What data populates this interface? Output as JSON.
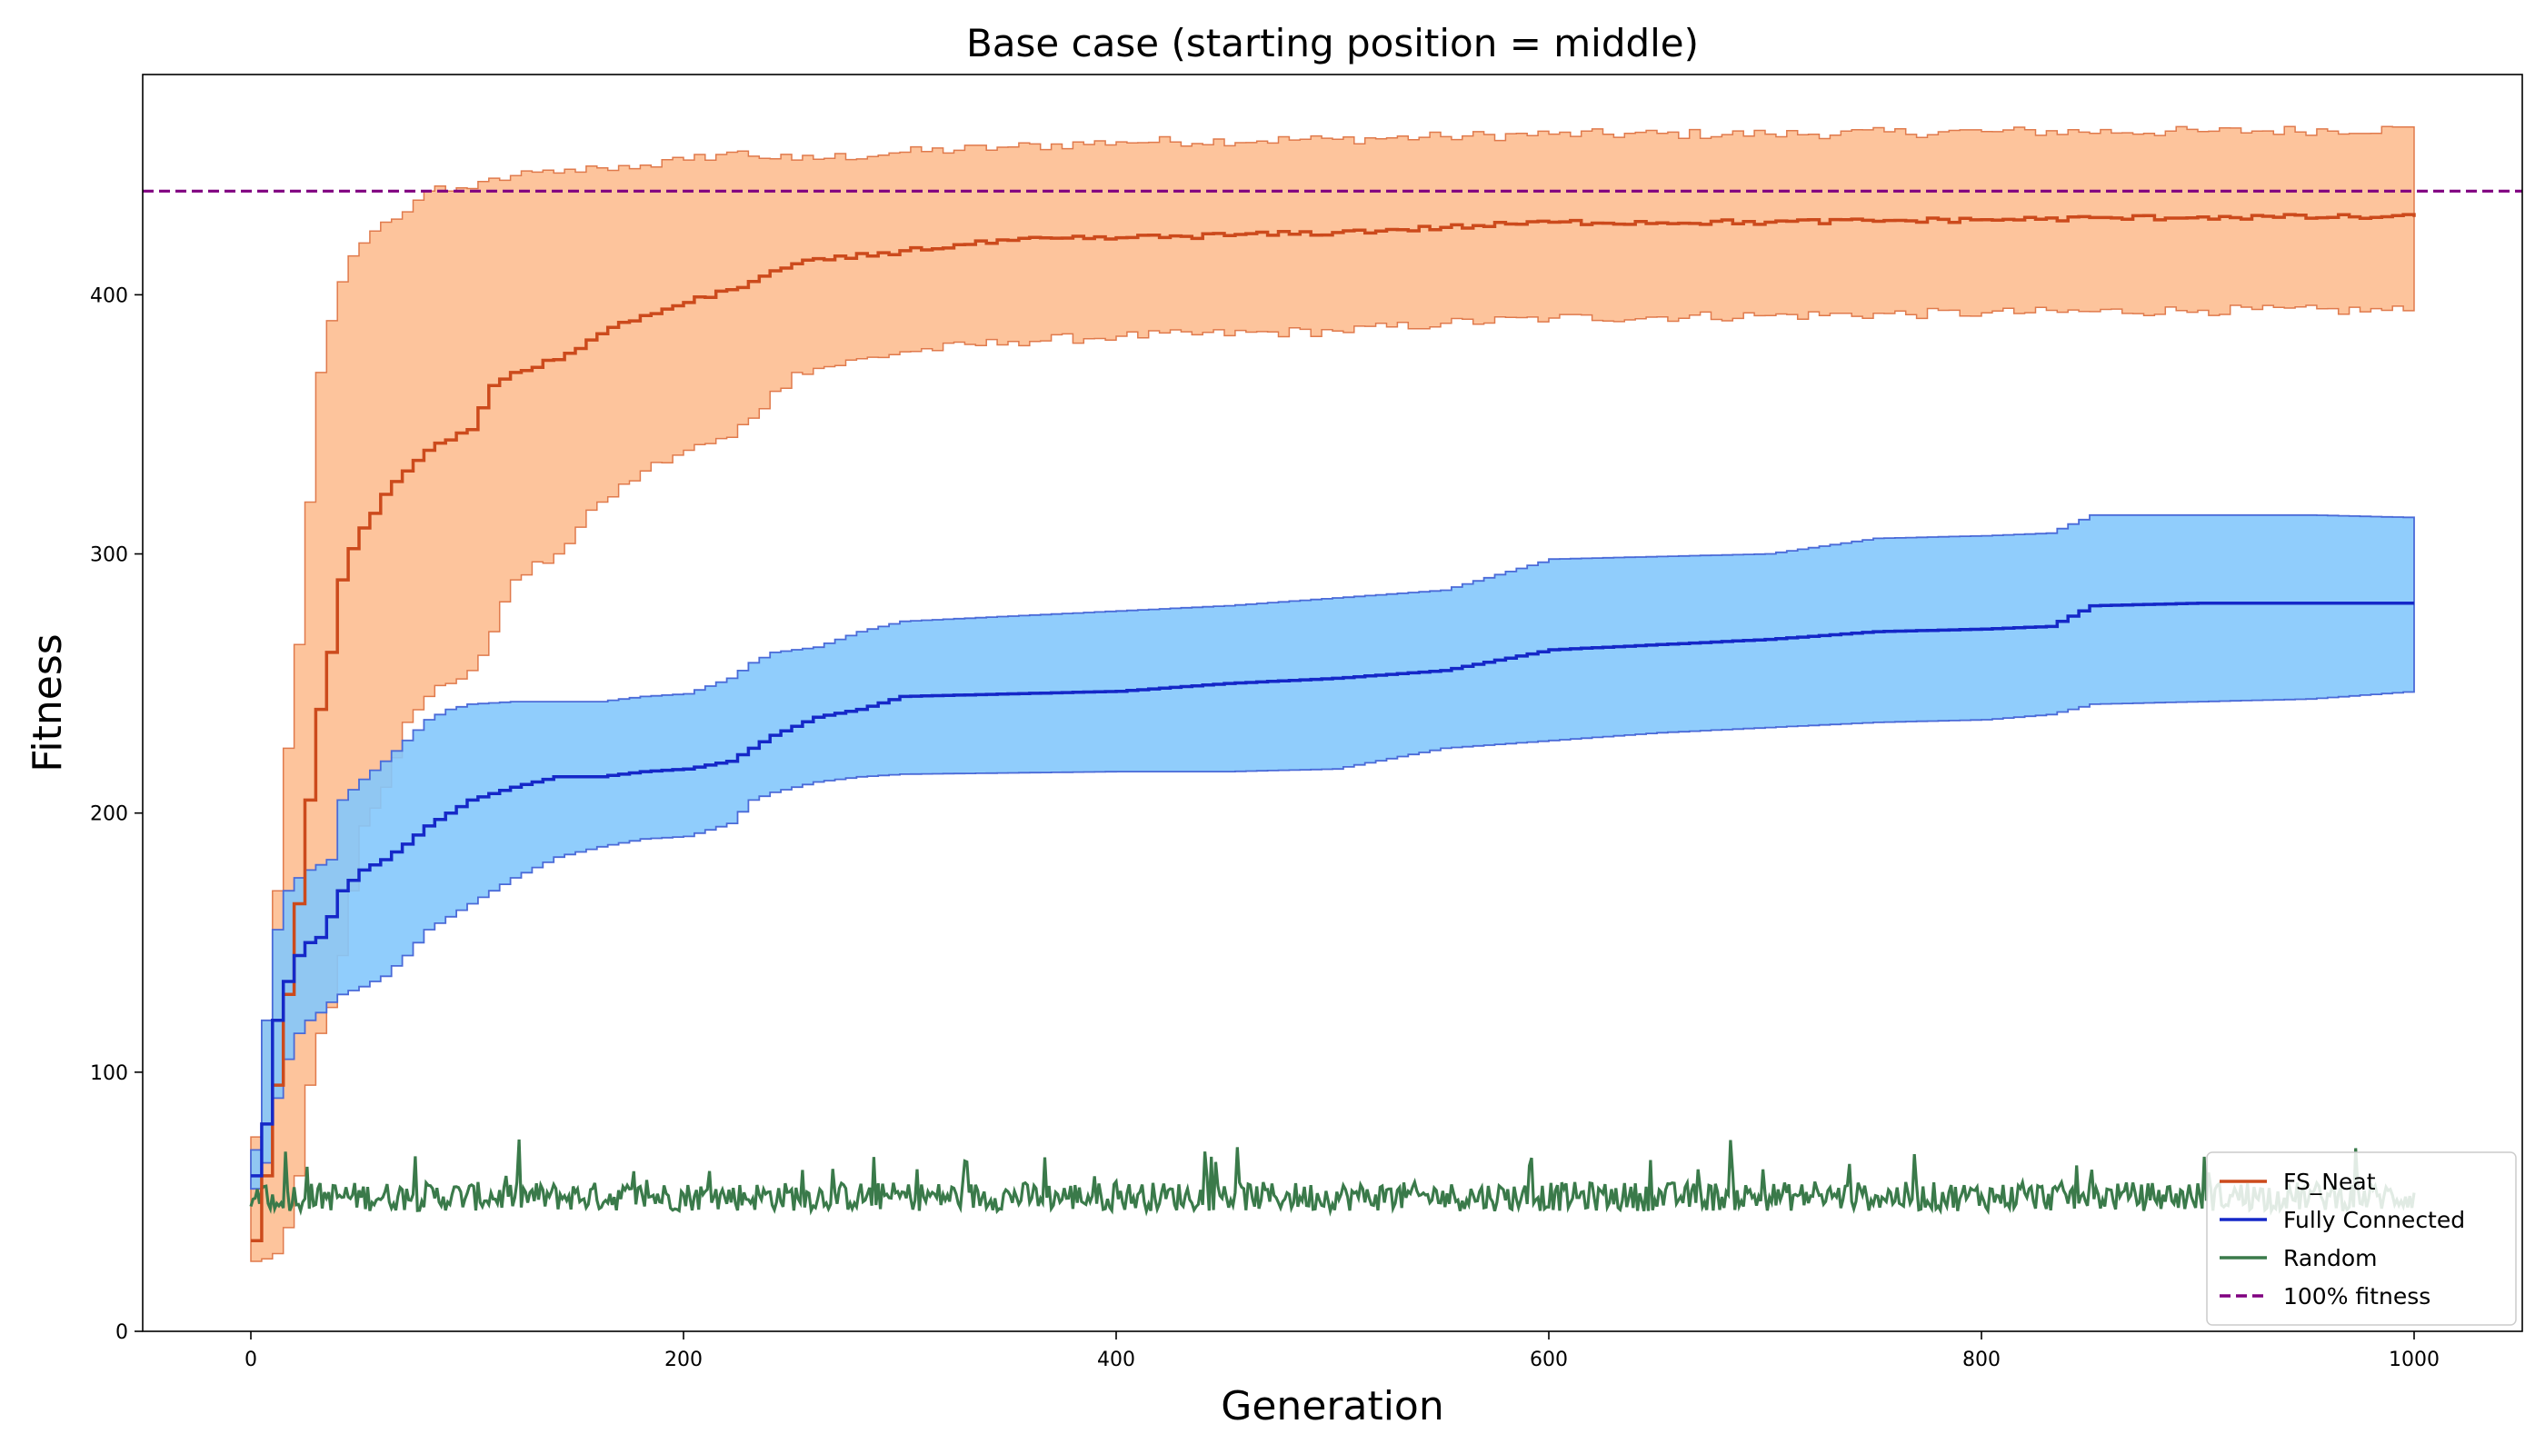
{
  "chart_data": {
    "type": "line",
    "title": "Base case (starting position = middle)",
    "xlabel": "Generation",
    "ylabel": "Fitness",
    "xlim": [
      -50,
      1050
    ],
    "ylim": [
      0,
      485
    ],
    "xticks": [
      0,
      200,
      400,
      600,
      800,
      1000
    ],
    "yticks": [
      0,
      100,
      200,
      300,
      400
    ],
    "grid": false,
    "legend_position": "bottom-right",
    "colors": {
      "fs_neat": "#cc4a1c",
      "fs_neat_band": "#fdc49c",
      "fs_neat_band_edge": "#e07a4c",
      "fully_connected": "#1528c8",
      "fully_connected_band": "#84c8fc",
      "fully_connected_band_edge": "#4a6ad8",
      "random": "#3a7a4a",
      "reference": "#800080"
    },
    "series": [
      {
        "name": "FS_Neat",
        "x": [
          0,
          5,
          10,
          15,
          20,
          25,
          30,
          35,
          40,
          45,
          50,
          60,
          70,
          80,
          90,
          100,
          110,
          120,
          140,
          160,
          180,
          200,
          220,
          250,
          300,
          350,
          400,
          500,
          550,
          600,
          700,
          800,
          900,
          1000
        ],
        "mean": [
          35,
          60,
          95,
          130,
          165,
          205,
          240,
          262,
          290,
          302,
          310,
          323,
          332,
          340,
          344,
          348,
          365,
          370,
          375,
          385,
          392,
          397,
          402,
          412,
          417,
          421,
          422,
          424,
          426,
          428,
          428,
          429,
          430,
          430
        ],
        "lower": [
          27,
          28,
          30,
          40,
          60,
          95,
          115,
          125,
          145,
          170,
          195,
          210,
          235,
          245,
          250,
          255,
          270,
          290,
          300,
          320,
          332,
          340,
          345,
          370,
          378,
          382,
          384,
          386,
          389,
          391,
          392,
          393,
          394,
          394
        ],
        "upper": [
          75,
          120,
          170,
          225,
          265,
          320,
          370,
          390,
          405,
          415,
          420,
          428,
          432,
          440,
          440,
          441,
          445,
          446,
          447,
          449,
          450,
          452,
          455,
          452,
          455,
          457,
          459,
          460,
          461,
          462,
          462,
          463,
          463,
          464
        ]
      },
      {
        "name": "Fully Connected",
        "x": [
          0,
          5,
          10,
          15,
          20,
          25,
          30,
          35,
          40,
          50,
          60,
          70,
          80,
          90,
          100,
          120,
          140,
          160,
          180,
          200,
          220,
          230,
          240,
          260,
          280,
          300,
          400,
          450,
          500,
          550,
          600,
          650,
          700,
          750,
          800,
          830,
          850,
          900,
          950,
          1000
        ],
        "mean": [
          60,
          80,
          120,
          135,
          145,
          150,
          152,
          160,
          170,
          178,
          182,
          188,
          195,
          200,
          205,
          210,
          214,
          214,
          216,
          217,
          220,
          225,
          230,
          237,
          240,
          245,
          247,
          250,
          252,
          255,
          263,
          265,
          267,
          270,
          271,
          272,
          280,
          281,
          281,
          281
        ],
        "lower": [
          55,
          65,
          90,
          105,
          115,
          120,
          123,
          127,
          130,
          133,
          137,
          145,
          155,
          160,
          165,
          175,
          183,
          187,
          190,
          191,
          196,
          205,
          208,
          212,
          214,
          215,
          216,
          216,
          217,
          225,
          228,
          231,
          233,
          235,
          236,
          238,
          242,
          243,
          244,
          247
        ],
        "upper": [
          70,
          120,
          155,
          170,
          175,
          178,
          180,
          182,
          205,
          213,
          220,
          228,
          236,
          240,
          242,
          243,
          243,
          243,
          245,
          246,
          252,
          258,
          262,
          264,
          270,
          274,
          278,
          280,
          283,
          286,
          298,
          299,
          300,
          306,
          307,
          308,
          315,
          315,
          315,
          314
        ]
      },
      {
        "name": "Random",
        "mean_level": 52,
        "spread": 8,
        "x_range": [
          0,
          1000
        ]
      }
    ],
    "reference_line": {
      "name": "100% fitness",
      "y": 440
    }
  }
}
